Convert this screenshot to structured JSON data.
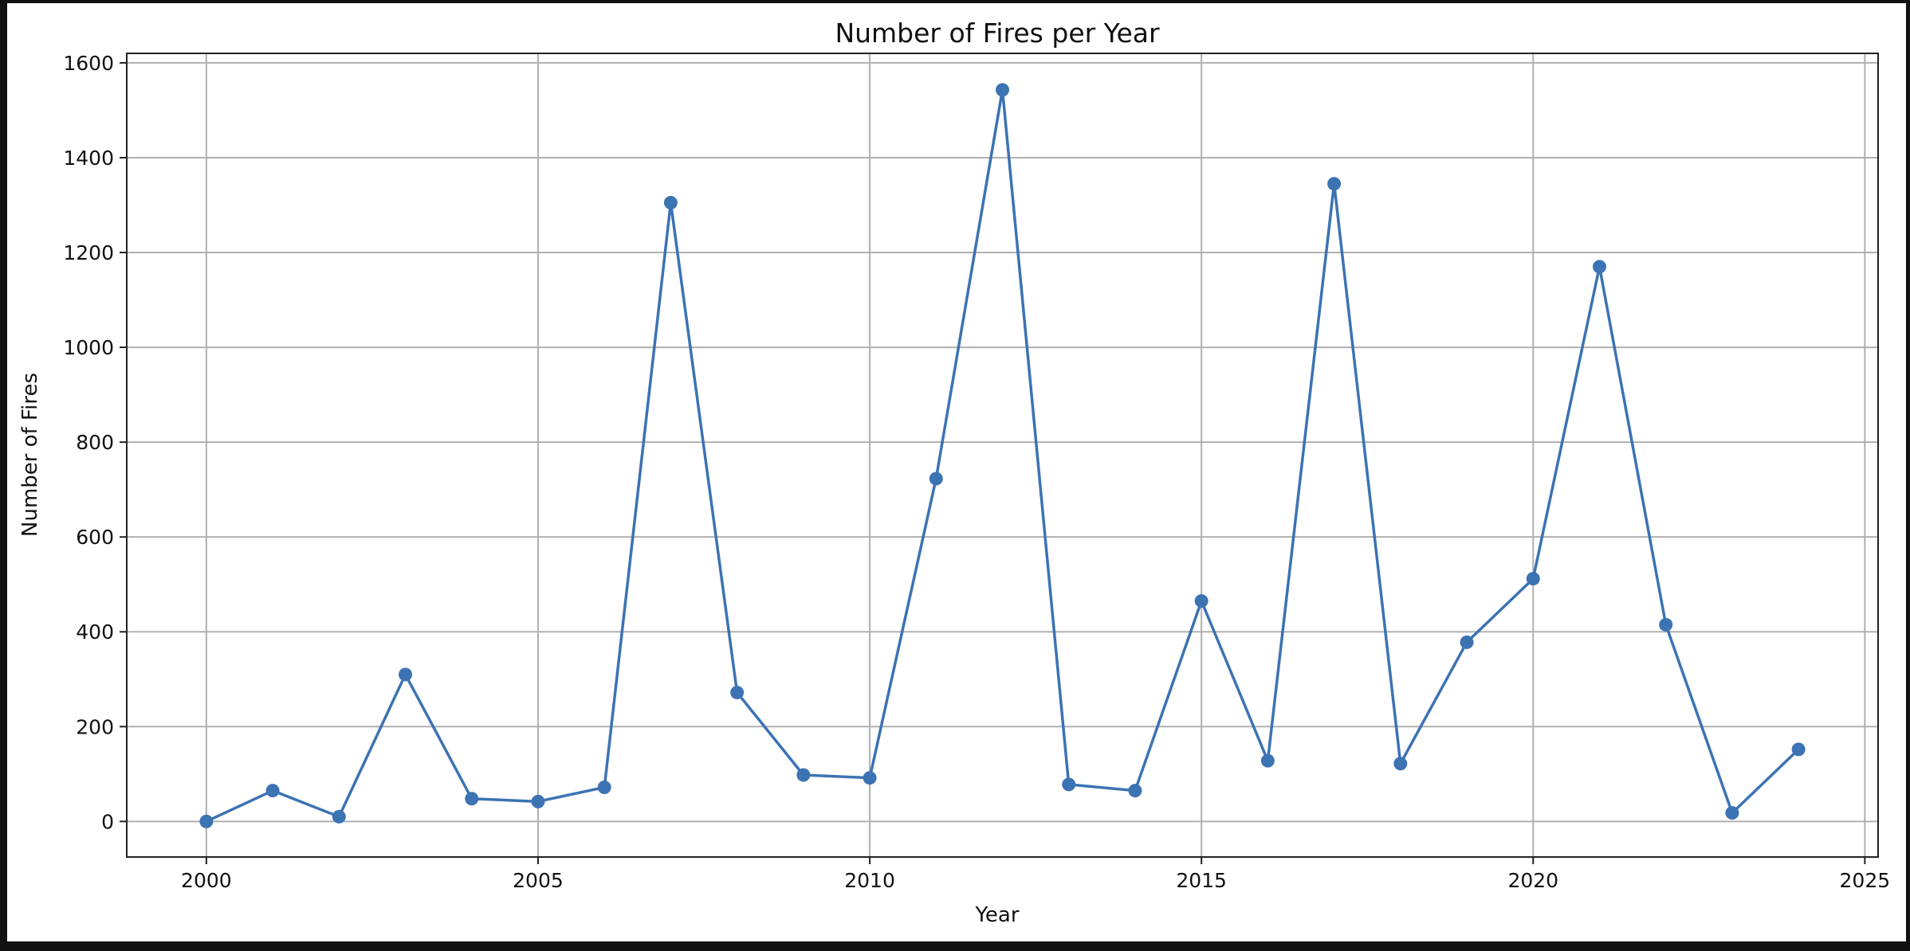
{
  "chart_data": {
    "type": "line",
    "title": "Number of Fires per Year",
    "xlabel": "Year",
    "ylabel": "Number of Fires",
    "xlim": [
      1998.8,
      2025.2
    ],
    "ylim": [
      -75,
      1620
    ],
    "x_ticks": [
      2000,
      2005,
      2010,
      2015,
      2020,
      2025
    ],
    "y_ticks": [
      0,
      200,
      400,
      600,
      800,
      1000,
      1200,
      1400,
      1600
    ],
    "grid": true,
    "marker": "circle",
    "line_color": "#3c73b3",
    "grid_color": "#b0b0b0",
    "series": [
      {
        "x": [
          2000,
          2001,
          2002,
          2003,
          2004,
          2005,
          2006,
          2007,
          2008,
          2009,
          2010,
          2011,
          2012,
          2013,
          2014,
          2015,
          2016,
          2017,
          2018,
          2019,
          2020,
          2021,
          2022,
          2023,
          2024
        ],
        "values": [
          0,
          65,
          10,
          310,
          48,
          42,
          72,
          1305,
          272,
          98,
          92,
          723,
          1543,
          78,
          65,
          465,
          128,
          1345,
          122,
          378,
          512,
          1170,
          415,
          18,
          152
        ]
      }
    ]
  }
}
